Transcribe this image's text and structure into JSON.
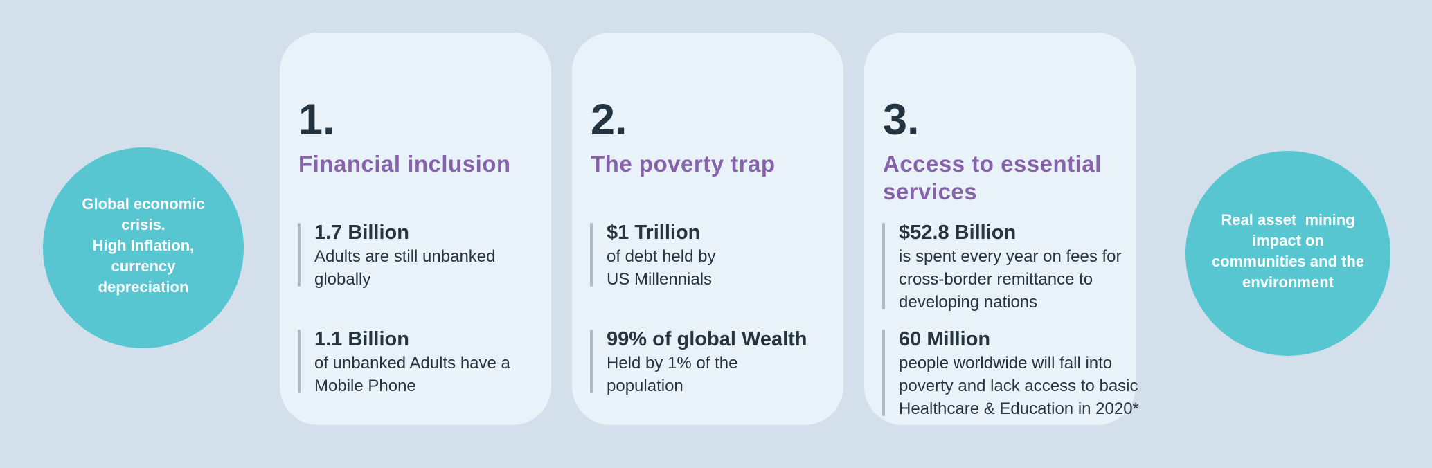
{
  "colors": {
    "page_background": "#d3e0eb",
    "card_background": "#e9f2f9",
    "circle_teal": "#58c6d1",
    "heading_purple": "#8562aa",
    "text_dark": "#25343f",
    "accent_bar_gray": "#b1bac2",
    "circle_text_white": "#ffffff"
  },
  "left_circle": {
    "text": "Global economic\ncrisis.\nHigh Inflation,\ncurrency\ndepreciation"
  },
  "right_circle": {
    "text": "Real asset  mining\nimpact on\ncommunities and the\nenvironment"
  },
  "cards": [
    {
      "number": "1.",
      "title": "Financial inclusion",
      "stats": [
        {
          "value": "1.7 Billion",
          "desc": "Adults are still unbanked\nglobally"
        },
        {
          "value": "1.1 Billion",
          "desc": "of unbanked Adults have a\nMobile Phone"
        }
      ]
    },
    {
      "number": "2.",
      "title": "The poverty trap",
      "stats": [
        {
          "value": "$1 Trillion",
          "desc": "of debt held by\nUS Millennials"
        },
        {
          "value": "99% of global Wealth",
          "desc": "Held by 1% of the\npopulation"
        }
      ]
    },
    {
      "number": "3.",
      "title": "Access to essential\nservices",
      "stats": [
        {
          "value": "$52.8 Billion",
          "desc": "is spent every year on fees for\ncross-border remittance to\ndeveloping nations"
        },
        {
          "value": "60 Million",
          "desc": "people worldwide will fall into\npoverty and lack access to basic\nHealthcare & Education in 2020*"
        }
      ]
    }
  ]
}
